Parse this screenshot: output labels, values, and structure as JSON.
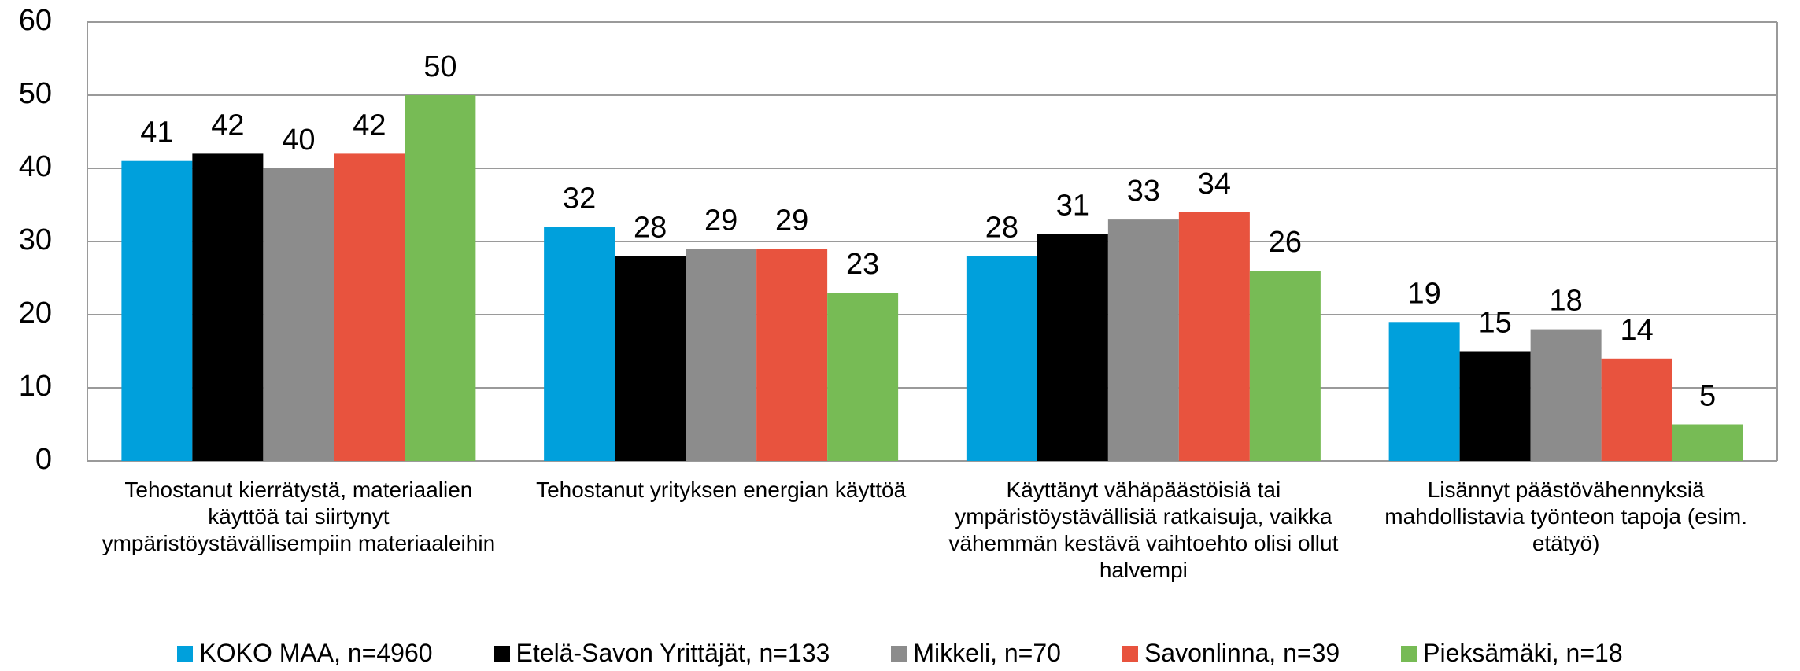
{
  "chart_data": {
    "type": "bar",
    "categories": [
      "Tehostanut kierrätystä, materiaalien käyttöä tai siirtynyt ympäristöystävällisempiin materiaaleihin",
      "Tehostanut yrityksen energian käyttöä",
      "Käyttänyt vähäpäästöisiä tai ympäristöystävällisiä ratkaisuja, vaikka vähemmän kestävä vaihtoehto olisi ollut halvempi",
      "Lisännyt päästövähennyksiä mahdollistavia työnteon tapoja (esim. etätyö)"
    ],
    "series": [
      {
        "name": "KOKO MAA, n=4960",
        "color": "#00a0dc",
        "values": [
          41,
          32,
          28,
          19
        ]
      },
      {
        "name": "Etelä-Savon Yrittäjät, n=133",
        "color": "#000000",
        "values": [
          42,
          28,
          31,
          15
        ]
      },
      {
        "name": "Mikkeli, n=70",
        "color": "#8c8c8c",
        "values": [
          40,
          29,
          33,
          18
        ]
      },
      {
        "name": "Savonlinna, n=39",
        "color": "#e8533e",
        "values": [
          42,
          29,
          34,
          14
        ]
      },
      {
        "name": "Pieksämäki, n=18",
        "color": "#77bb55",
        "values": [
          50,
          23,
          26,
          5
        ]
      }
    ],
    "ylim": [
      0,
      60
    ],
    "yticks": [
      0,
      10,
      20,
      30,
      40,
      50,
      60
    ],
    "grid": true,
    "legend": "bottom"
  }
}
